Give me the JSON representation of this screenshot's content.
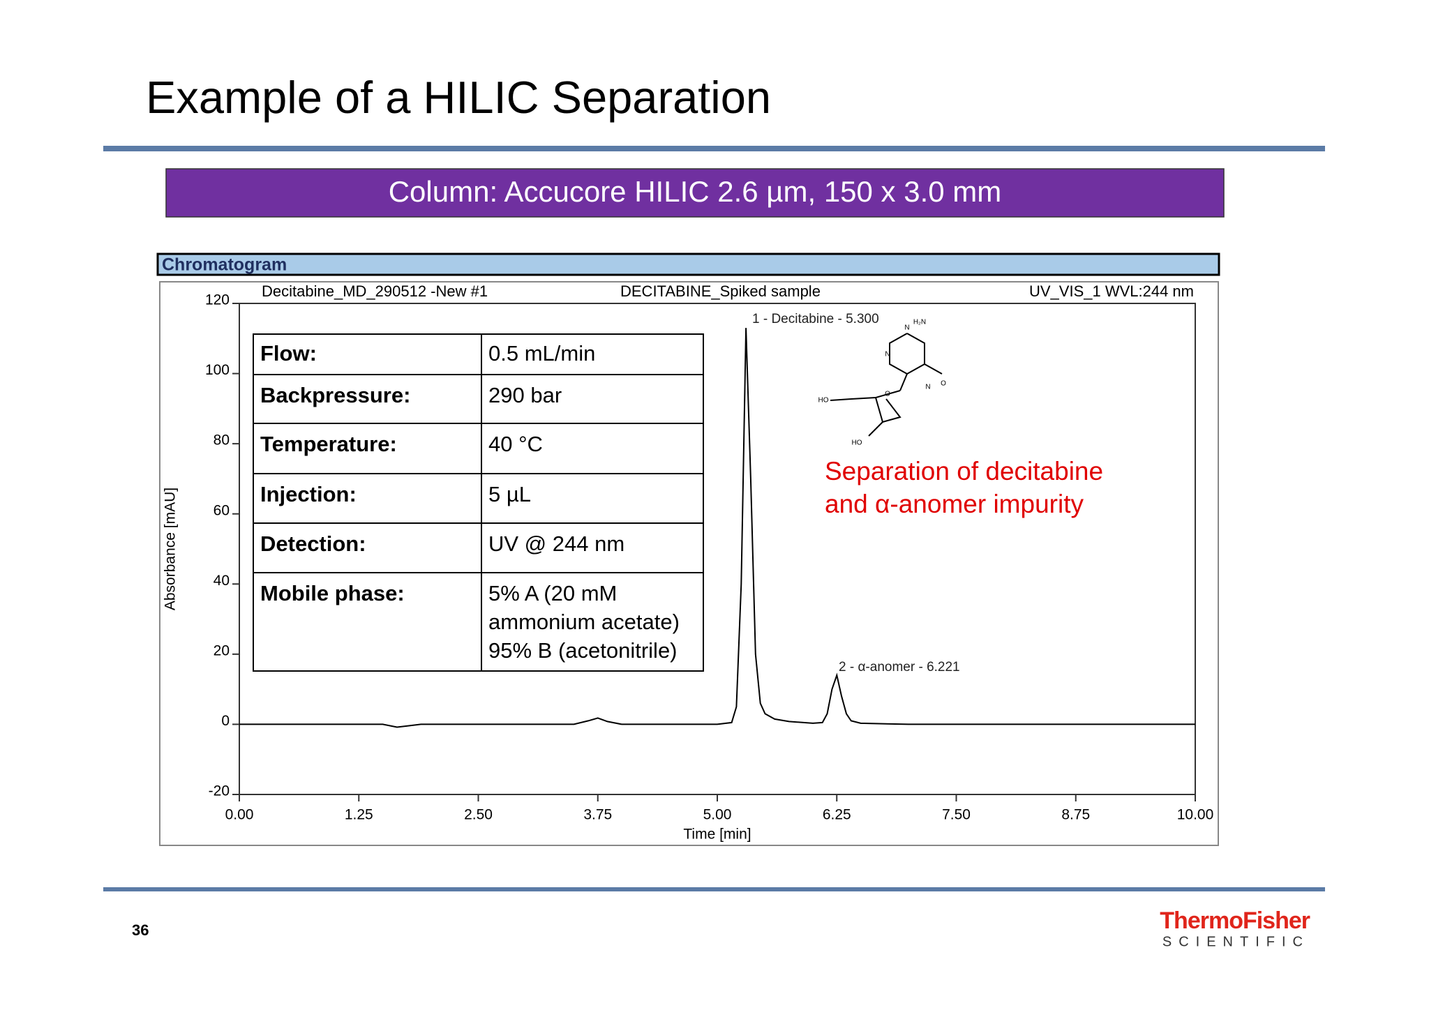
{
  "slide": {
    "title": "Example of a HILIC Separation",
    "banner": "Column: Accucore HILIC 2.6 µm, 150 x 3.0 mm",
    "panel_title": "Chromatogram",
    "page_number": "36",
    "logo": {
      "name": "ThermoFisher",
      "sub": "SCIENTIFIC"
    }
  },
  "table": {
    "rows": [
      [
        "Flow:",
        "0.5 mL/min"
      ],
      [
        "Backpressure:",
        "290 bar"
      ],
      [
        "Temperature:",
        "40 °C"
      ],
      [
        "Injection:",
        "5 µL"
      ],
      [
        "Detection:",
        "UV @ 244 nm"
      ],
      [
        "Mobile phase:",
        [
          "5% A (20 mM",
          "ammonium acetate)",
          "95% B (acetonitrile)"
        ]
      ]
    ]
  },
  "structure_labels": [
    "H₂N",
    "N",
    "N",
    "N",
    "O",
    "O",
    "HO",
    "HO"
  ],
  "chart_data": {
    "type": "line",
    "header": [
      "Decitabine_MD_290512 -New #1",
      "DECITABINE_Spiked sample",
      "UV_VIS_1 WVL:244 nm"
    ],
    "xlabel": "Time [min]",
    "ylabel": "Absorbance [mAU]",
    "annotations": [
      "1 - Decitabine - 5.300",
      "2 - α-anomer - 6.221"
    ],
    "note_lines": [
      "Separation of decitabine",
      "and α-anomer impurity"
    ],
    "color": "#000000",
    "x": [
      0,
      1.5,
      1.65,
      1.75,
      1.9,
      3.5,
      3.65,
      3.75,
      3.85,
      4.0,
      5.0,
      5.15,
      5.2,
      5.25,
      5.3,
      5.35,
      5.4,
      5.45,
      5.5,
      5.6,
      5.75,
      6.0,
      6.1,
      6.15,
      6.2,
      6.25,
      6.3,
      6.35,
      6.4,
      6.5,
      7.0,
      8.0,
      10.0
    ],
    "values": [
      0,
      0,
      -0.8,
      -0.5,
      0,
      0,
      1,
      1.8,
      0.8,
      0,
      0,
      0.5,
      5,
      40,
      113,
      70,
      20,
      6,
      3,
      1.5,
      0.8,
      0.3,
      0.5,
      3,
      10,
      14,
      8,
      3,
      1,
      0.3,
      0,
      0,
      0
    ],
    "xlim": [
      0,
      10
    ],
    "ylim": [
      -20,
      120
    ],
    "xticks": [
      {
        "value": 0,
        "label": "0.00"
      },
      {
        "value": 1.25,
        "label": "1.25"
      },
      {
        "value": 2.5,
        "label": "2.50"
      },
      {
        "value": 3.75,
        "label": "3.75"
      },
      {
        "value": 5,
        "label": "5.00"
      },
      {
        "value": 6.25,
        "label": "6.25"
      },
      {
        "value": 7.5,
        "label": "7.50"
      },
      {
        "value": 8.75,
        "label": "8.75"
      },
      {
        "value": 10,
        "label": "10.00"
      }
    ],
    "yticks": [
      -20,
      0,
      20,
      40,
      60,
      80,
      100,
      120
    ]
  }
}
